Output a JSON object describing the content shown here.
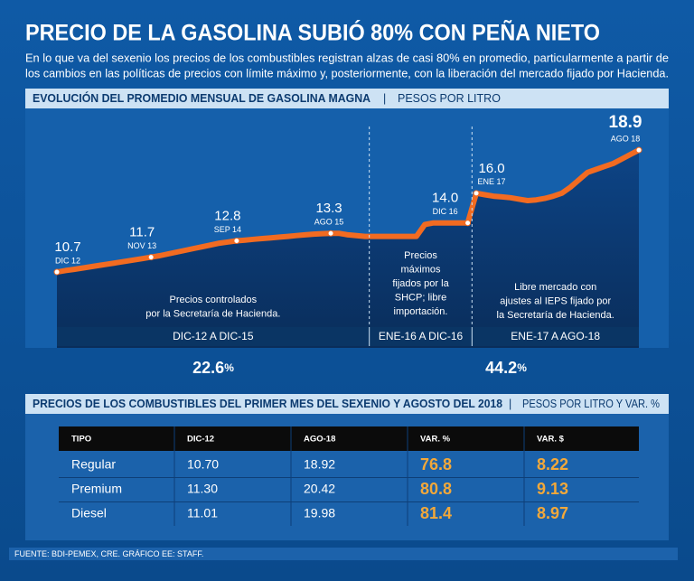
{
  "header": {
    "title": "PRECIO DE LA GASOLINA SUBIÓ 80% CON PEÑA NIETO",
    "intro": [
      "En lo que va del sexenio los precios de los combustibles registran alzas de casi 80% en promedio, particularmente a partir de",
      "los cambios en las políticas de precios con límite máximo y, posteriormente, con la liberación del mercado fijado por Hacienda."
    ]
  },
  "chart_data": {
    "type": "area",
    "title": "EVOLUCIÓN DEL PROMEDIO MENSUAL DE GASOLINA MAGNA",
    "y_label": "PESOS POR LITRO",
    "color": "#f26b21",
    "ylim": [
      5.6,
      21.7
    ],
    "categories": [
      "DIC 12",
      null,
      null,
      null,
      null,
      null,
      null,
      null,
      null,
      null,
      null,
      "NOV 13",
      null,
      null,
      null,
      null,
      null,
      null,
      null,
      null,
      null,
      "SEP 14",
      null,
      null,
      null,
      null,
      null,
      null,
      null,
      null,
      null,
      null,
      "AGO 15",
      null,
      null,
      null,
      null,
      null,
      null,
      null,
      null,
      null,
      null,
      null,
      null,
      null,
      null,
      null,
      "DIC 16",
      "ENE 17",
      null,
      null,
      null,
      null,
      null,
      null,
      null,
      null,
      null,
      null,
      null,
      null,
      null,
      null,
      null,
      null,
      null,
      null,
      "AGO 18"
    ],
    "values": [
      10.7,
      10.8,
      10.88,
      10.97,
      11.06,
      11.15,
      11.24,
      11.33,
      11.42,
      11.51,
      11.6,
      11.7,
      11.8,
      11.92,
      12.04,
      12.16,
      12.28,
      12.4,
      12.52,
      12.64,
      12.72,
      12.8,
      12.85,
      12.9,
      12.95,
      13.0,
      13.05,
      13.1,
      13.15,
      13.2,
      13.25,
      13.28,
      13.3,
      13.3,
      13.2,
      13.15,
      13.1,
      13.1,
      13.1,
      13.1,
      13.1,
      13.1,
      13.1,
      13.9,
      14,
      14,
      14,
      14,
      14,
      16,
      15.9,
      15.8,
      15.75,
      15.7,
      15.6,
      15.5,
      15.55,
      15.65,
      15.8,
      16.0,
      16.4,
      16.9,
      17.4,
      17.6,
      17.8,
      18.0,
      18.3,
      18.6,
      18.9
    ],
    "value_labels": [
      "10.7",
      null,
      null,
      null,
      null,
      null,
      null,
      null,
      null,
      null,
      null,
      "11.7",
      null,
      null,
      null,
      null,
      null,
      null,
      null,
      null,
      null,
      "12.8",
      null,
      null,
      null,
      null,
      null,
      null,
      null,
      null,
      null,
      null,
      "13.3",
      null,
      null,
      null,
      null,
      null,
      null,
      null,
      null,
      null,
      null,
      null,
      null,
      null,
      null,
      null,
      "14.0",
      "16.0",
      null,
      null,
      null,
      null,
      null,
      null,
      null,
      null,
      null,
      null,
      null,
      null,
      null,
      null,
      null,
      null,
      null,
      null,
      "18.9"
    ],
    "periods": [
      {
        "label": "DIC-12 A DIC-15",
        "note": [
          "Precios controlados",
          "por la Secretaría de Hacienda."
        ],
        "change": "22.6",
        "change_unit": "%"
      },
      {
        "label": "ENE-16 A DIC-16",
        "note": [
          "Precios",
          "máximos",
          "fijados por la",
          "SHCP; libre",
          "importación."
        ]
      },
      {
        "label": "ENE-17 A AGO-18",
        "note": [
          "Libre mercado con",
          "ajustes al IEPS fijado por",
          "la Secretaría de Hacienda."
        ],
        "change": "44.2",
        "change_unit": "%"
      }
    ]
  },
  "table": {
    "title": "PRECIOS DE LOS COMBUSTIBLES DEL PRIMER MES DEL SEXENIO Y AGOSTO DEL 2018",
    "subtitle": "PESOS POR LITRO Y VAR. %",
    "columns": [
      "TIPO",
      "DIC-12",
      "AGO-18",
      "VAR. %",
      "VAR. $"
    ],
    "rows": [
      [
        "Regular",
        "10.70",
        "18.92",
        "76.8",
        "8.22"
      ],
      [
        "Premium",
        "11.30",
        "20.42",
        "80.8",
        "9.13"
      ],
      [
        "Diesel",
        "11.01",
        "19.98",
        "81.4",
        "8.97"
      ]
    ]
  },
  "footer": "FUENTE: BDI-PEMEX, CRE. GRÁFICO EE: STAFF."
}
